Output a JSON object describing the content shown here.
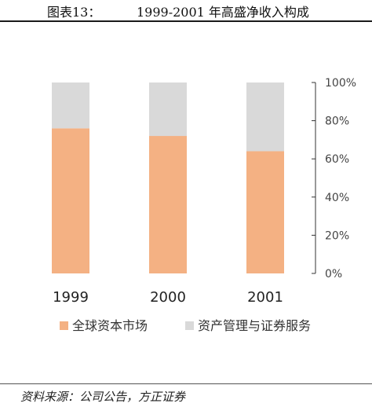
{
  "header": {
    "figure_label": "图表13：",
    "title": "1999-2001 年高盛净收入构成"
  },
  "source": "资料来源：公司公告，方正证券",
  "colors": {
    "series_0": "#f4b183",
    "series_1": "#d9d9d9",
    "axis": "#333333"
  },
  "chart_data": {
    "type": "bar",
    "stacked": true,
    "percent_stacked": true,
    "categories": [
      "1999",
      "2000",
      "2001"
    ],
    "series": [
      {
        "name": "全球资本市场",
        "values": [
          76,
          72,
          64
        ]
      },
      {
        "name": "资产管理与证券服务",
        "values": [
          24,
          28,
          36
        ]
      }
    ],
    "ylim": [
      0,
      100
    ],
    "y_ticks": [
      "0%",
      "20%",
      "40%",
      "60%",
      "80%",
      "100%"
    ],
    "y_axis_side": "right",
    "legend_position": "bottom",
    "grid": false
  }
}
